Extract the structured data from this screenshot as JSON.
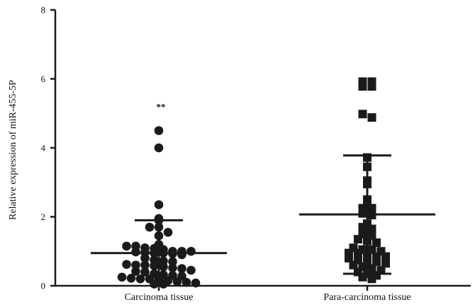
{
  "chart_data": {
    "type": "scatter",
    "ylabel": "Relative expression of miR-455-5P",
    "xlabel": "",
    "ylim": [
      0,
      8
    ],
    "yticks": [
      "0",
      "2",
      "4",
      "6",
      "8"
    ],
    "categories": [
      "Carcinoma tissue",
      "Para-carcinoma tissue"
    ],
    "grid": false,
    "legend": "none",
    "series": [
      {
        "category": "Carcinoma tissue",
        "marker": "circle",
        "mean": 0.95,
        "sd_upper": 1.9,
        "sd_lower": 0.0,
        "annotation": "**",
        "values": [
          4.5,
          4.0,
          2.35,
          1.95,
          1.9,
          1.7,
          1.7,
          1.55,
          1.45,
          1.2,
          1.15,
          1.15,
          1.1,
          1.08,
          1.05,
          1.0,
          1.0,
          1.0,
          0.98,
          0.97,
          0.95,
          0.95,
          0.93,
          0.9,
          0.8,
          0.75,
          0.72,
          0.7,
          0.62,
          0.6,
          0.6,
          0.58,
          0.55,
          0.52,
          0.5,
          0.45,
          0.42,
          0.4,
          0.35,
          0.32,
          0.3,
          0.28,
          0.25,
          0.22,
          0.2,
          0.2,
          0.18,
          0.15,
          0.12,
          0.1,
          0.08,
          0.05,
          0.05
        ]
      },
      {
        "category": "Para-carcinoma tissue",
        "marker": "square",
        "mean": 2.07,
        "sd_upper": 3.78,
        "sd_lower": 0.35,
        "values": [
          5.92,
          5.92,
          5.78,
          5.78,
          4.98,
          4.88,
          3.72,
          3.45,
          3.05,
          2.95,
          2.5,
          2.45,
          2.25,
          2.25,
          2.1,
          2.05,
          1.8,
          1.7,
          1.65,
          1.5,
          1.45,
          1.35,
          1.3,
          1.25,
          1.1,
          1.05,
          1.05,
          1.0,
          0.95,
          0.95,
          0.9,
          0.85,
          0.85,
          0.8,
          0.75,
          0.72,
          0.7,
          0.65,
          0.6,
          0.55,
          0.5,
          0.45,
          0.4,
          0.35,
          0.3,
          0.25,
          0.2
        ]
      }
    ]
  }
}
